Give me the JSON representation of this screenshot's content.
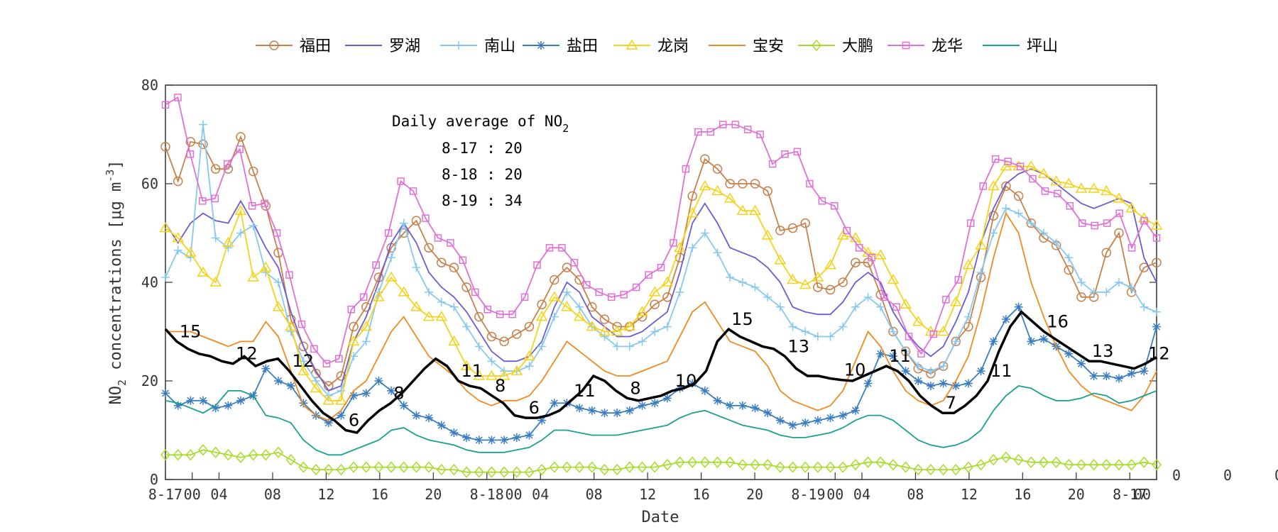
{
  "chart_data": {
    "type": "line",
    "xlabel": "Date",
    "ylabel_prefix": "NO",
    "ylabel_sub": "2",
    "ylabel_rest": " concentrations [",
    "ylabel_mu": "μg m",
    "ylabel_sup": "-3",
    "ylabel_end": "]",
    "ylim": [
      0,
      80
    ],
    "xlim": [
      0,
      70
    ],
    "grid": false,
    "legend_position": "top",
    "y_ticks": [
      0,
      20,
      40,
      60,
      80
    ],
    "x_ticks": [
      {
        "x": 0,
        "label": "8-17"
      },
      {
        "x": 2,
        "label": "00"
      },
      {
        "x": 4,
        "label": "04"
      },
      {
        "x": 8,
        "label": "08"
      },
      {
        "x": 12,
        "label": "12"
      },
      {
        "x": 16,
        "label": "16"
      },
      {
        "x": 20,
        "label": "20"
      },
      {
        "x": 24,
        "label": "8-18"
      },
      {
        "x": 26,
        "label": "00"
      },
      {
        "x": 28,
        "label": "04"
      },
      {
        "x": 32,
        "label": "08"
      },
      {
        "x": 36,
        "label": "12"
      },
      {
        "x": 40,
        "label": "16"
      },
      {
        "x": 44,
        "label": "20"
      },
      {
        "x": 48,
        "label": "8-19"
      },
      {
        "x": 50,
        "label": "00"
      },
      {
        "x": 52,
        "label": "04"
      },
      {
        "x": 56,
        "label": "08"
      },
      {
        "x": 60,
        "label": "12"
      },
      {
        "x": 64,
        "label": "16"
      },
      {
        "x": 68,
        "label": "20"
      },
      {
        "x": 72,
        "label": "8-17"
      },
      {
        "x": 74,
        "label": "00"
      }
    ],
    "right_ticks": [
      "0",
      "0",
      "0"
    ],
    "annotation": {
      "title_main": "Daily average of NO",
      "title_sub": "2",
      "lines": [
        "8-17 : 20",
        "8-18 : 20",
        "8-19 : 34"
      ]
    },
    "average": {
      "color": "#000000",
      "values": [
        30.5,
        28,
        26.5,
        25.5,
        25,
        24,
        23.5,
        25,
        23,
        24,
        24.5,
        22,
        19,
        16,
        13.5,
        12,
        10,
        9.5,
        12,
        14,
        15.5,
        17.5,
        20,
        22.5,
        24.5,
        23,
        20,
        19,
        18.5,
        17,
        15.5,
        13,
        12.5,
        12.5,
        13,
        14,
        16,
        18,
        21,
        20,
        18,
        16.5,
        16,
        16.5,
        17,
        18,
        18.5,
        19.5,
        22,
        28,
        30.5,
        29,
        28,
        27,
        26.5,
        25,
        22.5,
        21,
        21,
        20.5,
        20.2,
        20,
        21,
        22,
        23,
        22,
        20,
        17,
        15,
        13.5,
        13.5,
        15,
        17,
        20,
        26,
        31,
        34,
        32,
        30,
        28.5,
        27,
        25.5,
        24,
        24,
        23.5,
        23,
        22.5,
        23.5,
        24.8
      ],
      "labels": [
        {
          "i": 1,
          "text": "15"
        },
        {
          "i": 10,
          "text": "12"
        },
        {
          "i": 17,
          "text": "12"
        },
        {
          "i": 24,
          "text": "6"
        },
        {
          "i": 31,
          "text": "8"
        },
        {
          "i": 40,
          "text": "11"
        },
        {
          "i": 45,
          "text": "8"
        },
        {
          "i": 50,
          "text": "6"
        },
        {
          "i": 56,
          "text": "11"
        },
        {
          "i": 63,
          "text": "8"
        },
        {
          "i": 70,
          "text": "10"
        },
        {
          "i": 77,
          "text": "15"
        },
        {
          "i": 85,
          "text": "13"
        },
        {
          "i": 92,
          "text": "10"
        },
        {
          "i": 99,
          "text": "11"
        },
        {
          "i": 106,
          "text": "7"
        },
        {
          "i": 113,
          "text": "11"
        },
        {
          "i": 120,
          "text": "16"
        },
        {
          "i": 127,
          "text": "13"
        },
        {
          "i": 134,
          "text": "12"
        }
      ]
    },
    "series": [
      {
        "name": "福田",
        "color": "#c8804a",
        "marker": "circle",
        "values": [
          67.5,
          60.5,
          68.5,
          68,
          63,
          63,
          69.5,
          62.5,
          55.5,
          46,
          32.5,
          27,
          21.5,
          19,
          21,
          31,
          35,
          41,
          47,
          50,
          52.5,
          47,
          44,
          43,
          39,
          33,
          29,
          28,
          29.5,
          31,
          35.5,
          40.5,
          43,
          40.5,
          35,
          32.5,
          31,
          31,
          33,
          35.5,
          37,
          45,
          57.5,
          65,
          63,
          60,
          60,
          60,
          58.5,
          50.5,
          51,
          52,
          39,
          38.5,
          40,
          44,
          44,
          37.5,
          30,
          26,
          22.5,
          21.5,
          23,
          28,
          31,
          41,
          53.5,
          59.5,
          57.5,
          52,
          49,
          47.5,
          42.5,
          37,
          37,
          46,
          50,
          38,
          43,
          44
        ]
      },
      {
        "name": "罗湖",
        "color": "#6b5bd6",
        "marker": "none",
        "values": [
          52,
          48,
          52,
          54,
          52.5,
          52,
          56.5,
          52,
          47,
          43,
          34,
          27,
          22,
          18,
          19,
          28,
          33,
          40,
          48,
          52,
          48,
          42,
          39,
          37,
          34,
          30,
          26,
          24,
          24,
          25,
          28,
          35,
          40,
          38,
          33,
          31,
          29,
          29,
          30,
          32,
          34,
          42,
          52,
          56,
          52,
          47,
          46,
          45,
          43,
          40,
          35,
          34,
          33.5,
          33.5,
          36,
          40,
          42,
          40,
          34,
          30,
          27,
          25,
          27,
          32,
          38,
          48,
          55,
          60,
          62,
          63,
          62,
          60,
          58,
          56,
          55,
          56,
          57,
          56,
          45,
          40
        ]
      },
      {
        "name": "南山",
        "color": "#86c8f0",
        "marker": "plus",
        "values": [
          41,
          46.5,
          45,
          72,
          49,
          47,
          50,
          51.5,
          42,
          40,
          30,
          24,
          20,
          17,
          18,
          25,
          28,
          38,
          45,
          52,
          43,
          38,
          36,
          35,
          31,
          27,
          24,
          22,
          22,
          23,
          27,
          33,
          38,
          35,
          31,
          29,
          27,
          27,
          28,
          30,
          31,
          38,
          47,
          50,
          46,
          41,
          40,
          39,
          37,
          35,
          31,
          30,
          29,
          29,
          31,
          35,
          37,
          35,
          30,
          26,
          23,
          22,
          23,
          28,
          33,
          42,
          50,
          55,
          54,
          52,
          50,
          48,
          45,
          40,
          38,
          38,
          40,
          39,
          35,
          34
        ]
      },
      {
        "name": "盐田",
        "color": "#3a7ec0",
        "marker": "asterisk",
        "values": [
          17.5,
          15,
          16,
          16,
          14.5,
          15,
          16,
          17,
          22.5,
          20,
          19,
          15.5,
          13,
          11.5,
          13,
          17,
          17.5,
          20,
          18,
          15,
          13,
          12.5,
          11,
          9.5,
          8.5,
          8,
          8,
          8,
          8.5,
          9,
          12,
          15.5,
          15.5,
          14.5,
          14,
          13.5,
          13.5,
          14,
          15,
          15.5,
          16.5,
          18.5,
          19.5,
          18,
          16,
          15,
          15,
          14.5,
          13.5,
          12,
          11,
          11.5,
          12,
          12.5,
          13,
          14,
          19.5,
          25.5,
          25,
          22,
          20,
          19,
          19.5,
          19,
          19.5,
          22,
          28,
          32.5,
          35,
          28,
          28.5,
          27,
          25.5,
          23.5,
          21,
          21,
          20.5,
          21.5,
          22,
          31
        ]
      },
      {
        "name": "龙岗",
        "color": "#f5d21a",
        "marker": "triangle",
        "values": [
          51,
          49,
          46,
          42,
          40,
          48,
          54.5,
          41,
          43,
          35,
          31,
          22,
          18.5,
          16,
          16,
          28,
          31,
          37,
          41,
          38,
          35,
          33,
          33,
          28,
          23,
          21,
          21,
          21,
          22,
          25,
          33,
          37,
          35,
          33,
          31,
          30,
          30,
          31,
          34,
          38,
          40,
          47,
          54,
          59.5,
          58.5,
          57,
          54.5,
          54.5,
          49.5,
          44.5,
          40.5,
          39.5,
          41,
          43.5,
          49.5,
          49,
          46,
          45.5,
          40.5,
          35.5,
          32,
          30,
          30,
          36,
          43.5,
          47.5,
          59.5,
          63.5,
          63.5,
          63.5,
          62,
          60.5,
          60,
          59,
          59,
          58.5,
          57,
          55,
          53,
          51.5
        ]
      },
      {
        "name": "宝安",
        "color": "#f08a1e",
        "marker": "none",
        "values": [
          30,
          30,
          30,
          29,
          28,
          27,
          28,
          28,
          32,
          29,
          22,
          15,
          13,
          12,
          14,
          18,
          20,
          25,
          30,
          33,
          29,
          25,
          23,
          21,
          18,
          16,
          15,
          16,
          16,
          17,
          20,
          24,
          28,
          26,
          24,
          22,
          21,
          21,
          22,
          23,
          24,
          29,
          34,
          36,
          32,
          28,
          27,
          26,
          23,
          18,
          16,
          15,
          14,
          15,
          18,
          24,
          30,
          27,
          22,
          18,
          16,
          15,
          16,
          20,
          25,
          34,
          45,
          54,
          50,
          40,
          33,
          27,
          22,
          19,
          17,
          16,
          15,
          14,
          17,
          22
        ]
      },
      {
        "name": "大鹏",
        "color": "#a6dc2a",
        "marker": "diamond",
        "values": [
          5,
          5,
          5,
          6,
          5.5,
          5,
          4.5,
          5,
          5,
          5.5,
          4,
          2.5,
          2,
          2,
          2,
          2.5,
          2.5,
          2.5,
          2.5,
          2.5,
          2.5,
          2.5,
          2,
          2,
          1.5,
          1.5,
          1.5,
          1.5,
          1.5,
          1.5,
          2,
          2.5,
          2.5,
          2.5,
          2.5,
          2,
          2,
          2.5,
          2.5,
          2.5,
          3,
          3.5,
          3.5,
          3.5,
          3.5,
          3.5,
          3,
          3,
          3,
          2.5,
          2.5,
          2.5,
          2.5,
          2.5,
          2.5,
          3,
          3.5,
          3.5,
          3,
          2.5,
          2,
          2,
          2,
          2,
          2.5,
          3,
          4,
          4.5,
          4,
          3.5,
          3.5,
          3.5,
          3,
          3,
          3,
          3,
          3,
          3,
          3.5,
          3
        ]
      },
      {
        "name": "龙华",
        "color": "#e070d8",
        "marker": "square",
        "values": [
          76,
          77.5,
          66,
          56.5,
          57,
          64,
          67,
          55.5,
          56,
          50,
          41.5,
          31.5,
          26.5,
          23.5,
          24.5,
          34.5,
          37,
          43.5,
          50,
          60.5,
          58.5,
          53,
          49,
          48,
          44.5,
          38,
          34.5,
          33.5,
          33.5,
          37,
          43.5,
          47,
          47,
          44,
          39.5,
          38,
          37,
          37.5,
          39,
          41.5,
          43,
          48,
          63,
          70.5,
          70.5,
          72,
          72,
          71,
          70,
          64,
          66,
          66.5,
          60,
          56.5,
          55.5,
          50.5,
          47,
          45,
          37,
          35,
          29,
          25.5,
          29.5,
          36.5,
          40.5,
          52,
          59.5,
          65,
          64.5,
          63.5,
          61,
          58.5,
          58,
          55.5,
          52,
          51.5,
          52,
          54,
          47,
          52.5,
          49
        ]
      },
      {
        "name": "坪山",
        "color": "#1aa090",
        "marker": "none",
        "values": [
          16,
          15.5,
          14.5,
          13.5,
          15,
          18,
          18,
          17,
          13,
          12.5,
          11.5,
          8,
          6,
          5,
          5,
          6,
          7,
          8,
          10,
          10.5,
          9,
          8,
          7.5,
          7,
          6,
          5.5,
          5.5,
          5.5,
          6,
          6.5,
          8,
          10,
          10,
          9.5,
          9,
          9,
          9,
          9.5,
          10,
          10.5,
          11,
          12.5,
          13.5,
          14,
          13,
          12,
          11,
          10.5,
          10,
          9,
          8.5,
          8.5,
          9,
          9.5,
          10.5,
          12,
          13,
          13,
          12,
          10,
          8,
          7,
          6.5,
          7,
          8,
          10,
          14,
          17,
          19,
          18.5,
          17,
          16,
          16,
          16.5,
          17.5,
          17,
          15.5,
          16,
          17,
          18
        ]
      }
    ]
  }
}
